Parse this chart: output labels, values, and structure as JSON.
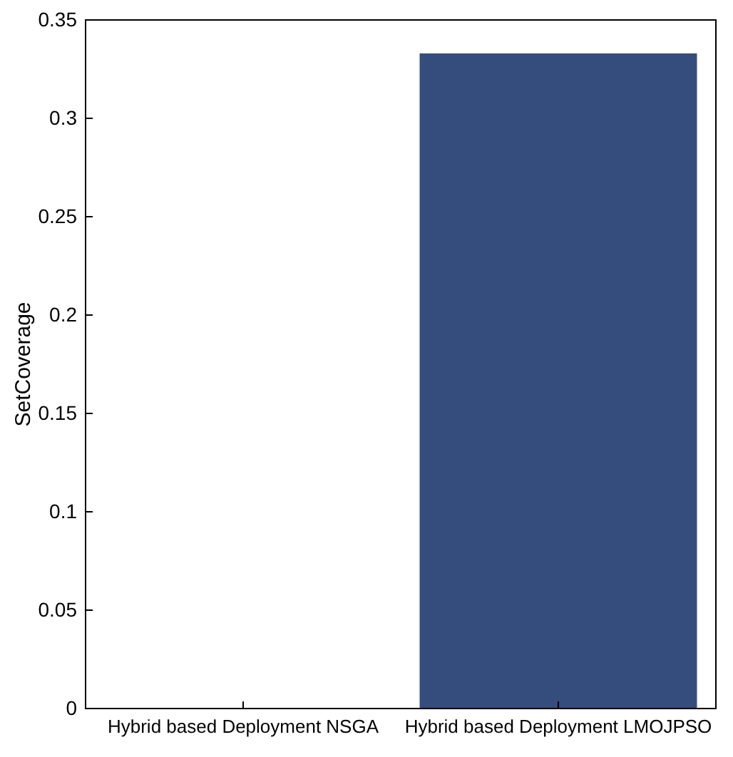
{
  "chart_data": {
    "type": "bar",
    "ylabel": "SetCoverage",
    "categories": [
      "Hybrid based Deployment NSGA",
      "Hybrid based Deployment LMOJPSO"
    ],
    "values": [
      0,
      0.333
    ],
    "color": "#344d7c",
    "ylim": [
      0,
      0.35
    ],
    "yticks": [
      0,
      0.05,
      0.1,
      0.15,
      0.2,
      0.25,
      0.3,
      0.35
    ],
    "grid": false
  }
}
